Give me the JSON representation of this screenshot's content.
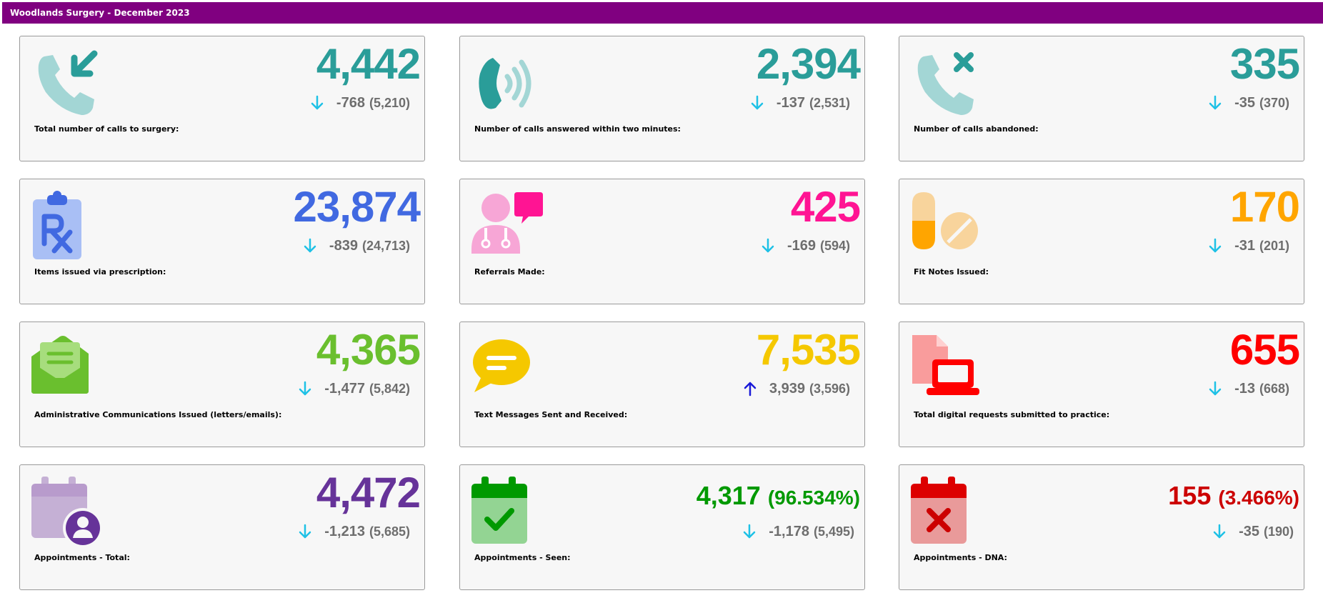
{
  "header": {
    "title": "Woodlands Surgery - December 2023"
  },
  "cards": [
    {
      "value": "4,442",
      "delta": "-768",
      "prev": "(5,210)",
      "label": "Total number of calls to surgery:",
      "color": "#2a9d99",
      "trend": "down"
    },
    {
      "value": "2,394",
      "delta": "-137",
      "prev": "(2,531)",
      "label": "Number of calls answered within two minutes:",
      "color": "#2a9d99",
      "trend": "down"
    },
    {
      "value": "335",
      "delta": "-35",
      "prev": "(370)",
      "label": "Number of calls abandoned:",
      "color": "#2a9d99",
      "trend": "down"
    },
    {
      "value": "23,874",
      "delta": "-839",
      "prev": "(24,713)",
      "label": "Items issued via prescription:",
      "color": "#4169e1",
      "trend": "down"
    },
    {
      "value": "425",
      "delta": "-169",
      "prev": "(594)",
      "label": "Referrals Made:",
      "color": "#ff1493",
      "trend": "down"
    },
    {
      "value": "170",
      "delta": "-31",
      "prev": "(201)",
      "label": "Fit Notes Issued:",
      "color": "#ffa500",
      "trend": "down"
    },
    {
      "value": "4,365",
      "delta": "-1,477",
      "prev": "(5,842)",
      "label": "Administrative Communications Issued (letters/emails):",
      "color": "#6abf2e",
      "trend": "down"
    },
    {
      "value": "7,535",
      "delta": "3,939",
      "prev": "(3,596)",
      "label": "Text Messages Sent and Received:",
      "color": "#f5c800",
      "trend": "up"
    },
    {
      "value": "655",
      "delta": "-13",
      "prev": "(668)",
      "label": "Total digital requests submitted to practice:",
      "color": "#ff0000",
      "trend": "down"
    },
    {
      "value": "4,472",
      "delta": "-1,213",
      "prev": "(5,685)",
      "label": "Appointments - Total:",
      "color": "#663399",
      "trend": "down"
    },
    {
      "value": "4,317",
      "pct": "(96.534%)",
      "delta": "-1,178",
      "prev": "(5,495)",
      "label": "Appointments - Seen:",
      "color": "#009900",
      "trend": "down"
    },
    {
      "value": "155",
      "pct": "(3.466%)",
      "delta": "-35",
      "prev": "(190)",
      "label": "Appointments - DNA:",
      "color": "#cc0000",
      "trend": "down"
    }
  ],
  "colors": {
    "header_bg": "#800080",
    "down_arrow": "#1ec1e6",
    "up_arrow": "#1a1ad8",
    "muted": "#6e6e6e"
  },
  "icons": [
    "phone-incoming-icon",
    "phone-ringing-icon",
    "phone-missed-icon",
    "prescription-clipboard-icon",
    "doctor-chat-icon",
    "pills-icon",
    "envelope-letter-icon",
    "chat-bubble-icon",
    "digital-request-icon",
    "calendar-user-icon",
    "calendar-check-icon",
    "calendar-x-icon"
  ]
}
